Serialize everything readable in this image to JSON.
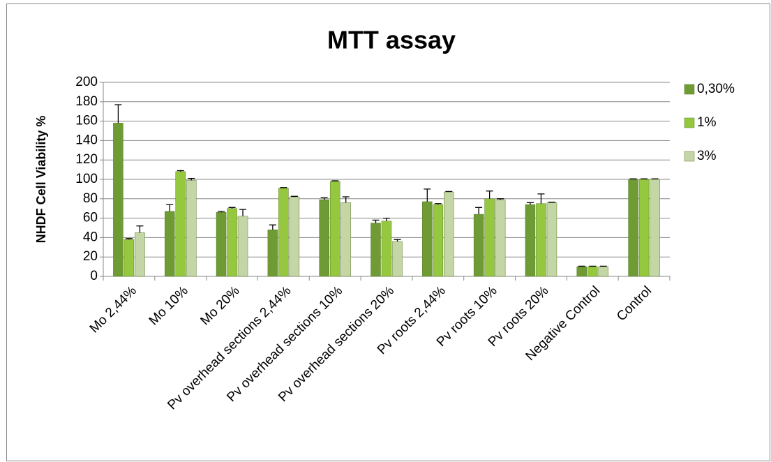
{
  "chart_data": {
    "type": "bar",
    "title": "MTT assay",
    "y_label": "NHDF Cell Viability %",
    "categories": [
      "Mo 2,44%",
      "Mo 10%",
      "Mo 20%",
      "Pv overhead sections 2,44%",
      "Pv overhead sections  10%",
      "Pv overhead sections  20%",
      "Pv roots 2,44%",
      "Pv roots  10%",
      "Pv roots  20%",
      "Negative Control",
      "Control"
    ],
    "series": [
      {
        "name": "0,30%",
        "color": "#6e9b33",
        "values": [
          158,
          67,
          66,
          48,
          79,
          55,
          77,
          64,
          74,
          10,
          100
        ],
        "errors": [
          19,
          7,
          1,
          5,
          2,
          3,
          13,
          7,
          2,
          0.5,
          0.5
        ]
      },
      {
        "name": "1%",
        "color": "#95c83e",
        "values": [
          38,
          108,
          70,
          91,
          98,
          57,
          74,
          80,
          75,
          10,
          100
        ],
        "errors": [
          1,
          1,
          1,
          0.5,
          0.5,
          3,
          1,
          8,
          10,
          0.5,
          0.5
        ]
      },
      {
        "name": "3%",
        "color": "#c5d6a6",
        "values": [
          45,
          99,
          62,
          82,
          76,
          36,
          87,
          79,
          76,
          10,
          100
        ],
        "errors": [
          7,
          2,
          7,
          0.5,
          6,
          2,
          0.5,
          1,
          0.5,
          0.5,
          0.5
        ]
      }
    ],
    "ylim": [
      0,
      200
    ],
    "yticks": [
      0,
      20,
      40,
      60,
      80,
      100,
      120,
      140,
      160,
      180,
      200
    ],
    "grid": true,
    "legend": "right"
  }
}
